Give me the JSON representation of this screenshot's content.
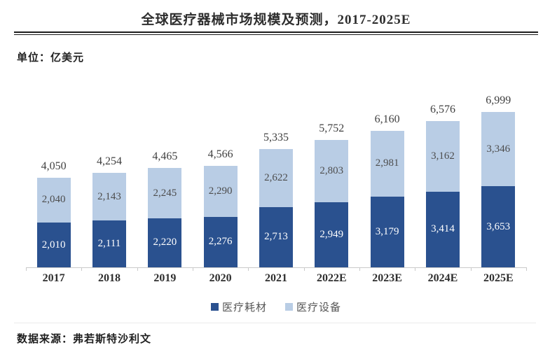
{
  "page": {
    "title": "全球医疗器械市场规模及预测，2017-2025E",
    "unit_label": "单位：亿美元",
    "source_label": "数据来源：弗若斯特沙利文"
  },
  "colors": {
    "consumables_bar": "#2A518F",
    "equipment_bar": "#B9CDE5",
    "axis_line": "#C9C9C9",
    "label_on_dark": "#FFFFFF",
    "label_on_light": "#4D4D4D",
    "total_label": "#3F3F3F"
  },
  "chart_data": {
    "type": "bar",
    "stacked": true,
    "title": "全球医疗器械市场规模及预测，2017-2025E",
    "unit": "亿美元",
    "categories": [
      "2017",
      "2018",
      "2019",
      "2020",
      "2021",
      "2022E",
      "2023E",
      "2024E",
      "2025E"
    ],
    "series": [
      {
        "name": "医疗耗材",
        "color": "#2A518F",
        "label_color": "#FFFFFF",
        "values": [
          2010,
          2111,
          2220,
          2276,
          2713,
          2949,
          3179,
          3414,
          3653
        ]
      },
      {
        "name": "医疗设备",
        "color": "#B9CDE5",
        "label_color": "#4D4D4D",
        "values": [
          2040,
          2143,
          2245,
          2290,
          2622,
          2803,
          2981,
          3162,
          3346
        ]
      }
    ],
    "totals": [
      4050,
      4254,
      4465,
      4566,
      5335,
      5752,
      6160,
      6576,
      6999
    ],
    "value_format": "thousands-comma",
    "grid": false,
    "y_axis_shown": false,
    "legend_position": "bottom"
  }
}
